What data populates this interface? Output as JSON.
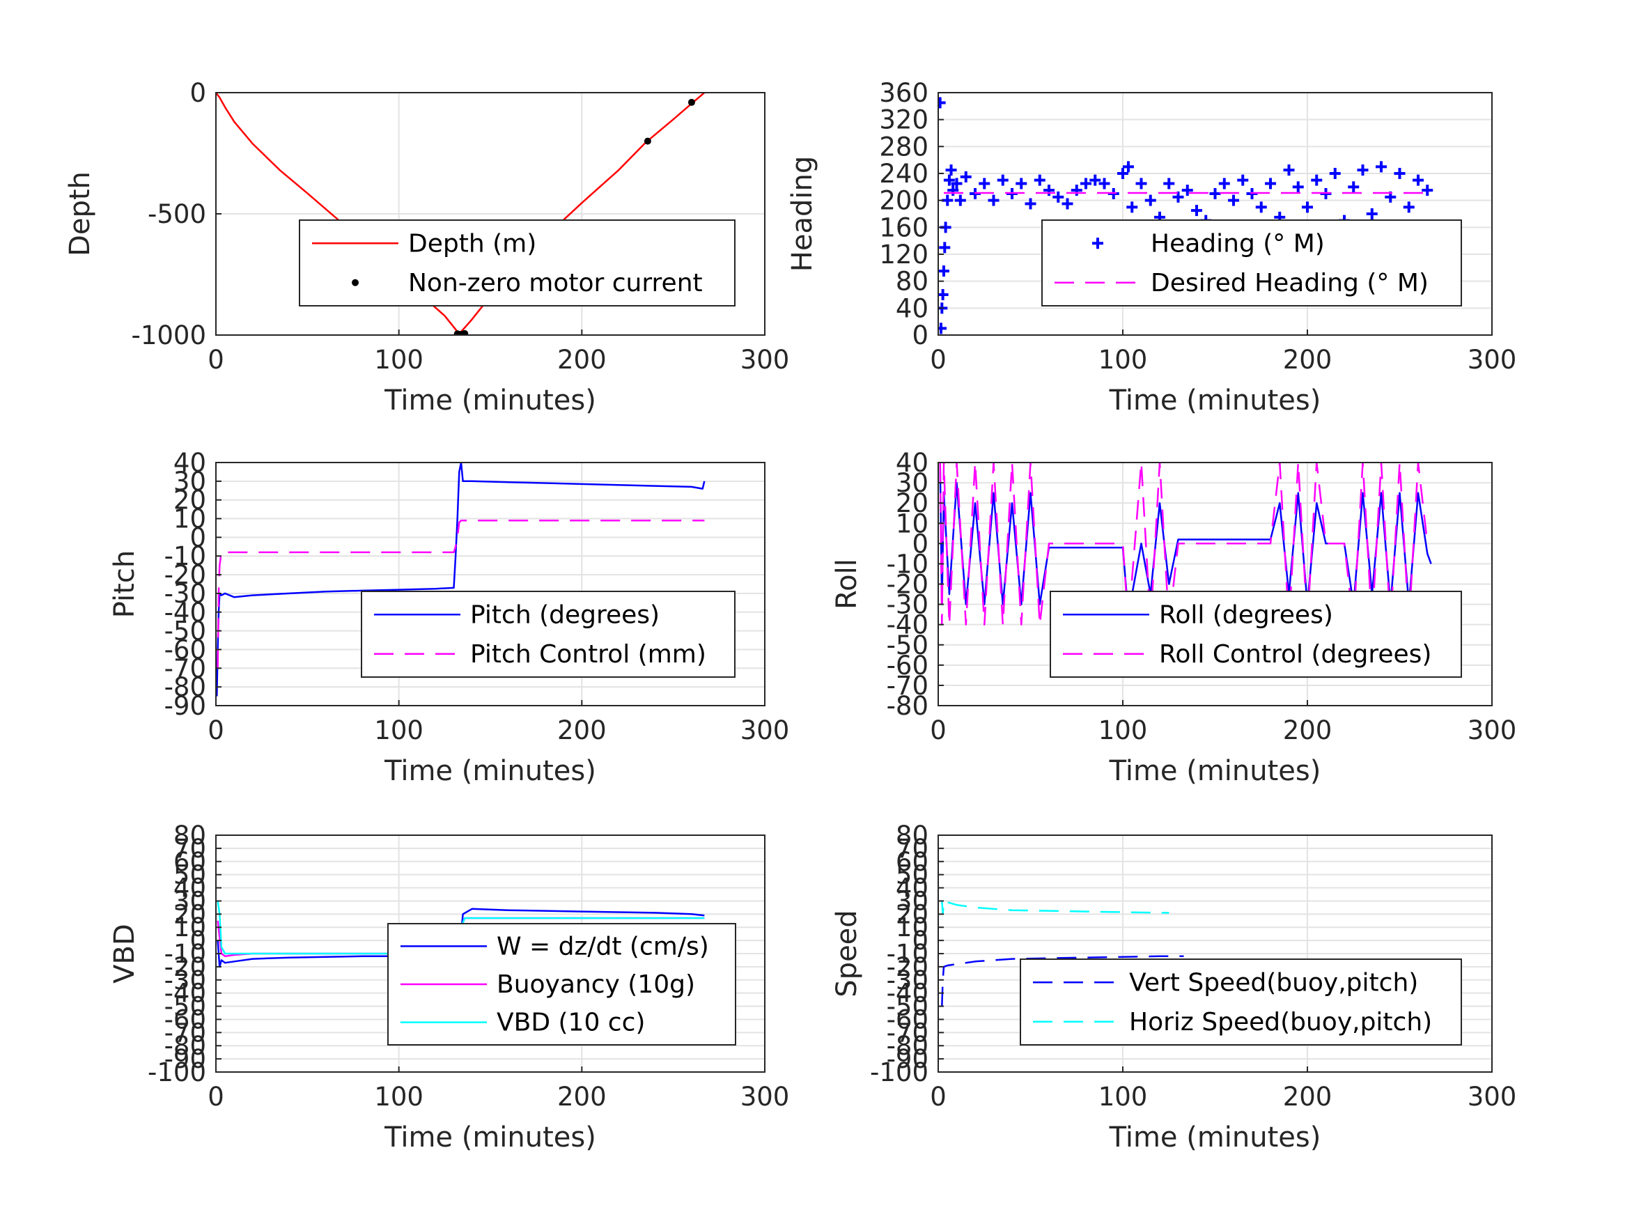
{
  "colors": {
    "red": "#ff0000",
    "black": "#000000",
    "blue": "#0000ff",
    "magenta": "#ff00ff",
    "cyan": "#00ffff",
    "grid": "#e3e3e3",
    "axis": "#262626"
  },
  "chart_data": [
    {
      "id": "depth",
      "type": "line",
      "xlabel": "Time (minutes)",
      "ylabel": "Depth",
      "xlim": [
        0,
        300
      ],
      "ylim": [
        -1000,
        0
      ],
      "xticks": [
        0,
        100,
        200,
        300
      ],
      "yticks": [
        -1000,
        -500,
        0
      ],
      "grid": true,
      "legend": "center-right",
      "series": [
        {
          "name": "Depth (m)",
          "style": "line",
          "color": "#ff0000",
          "x": [
            0,
            2,
            5,
            10,
            20,
            35,
            50,
            70,
            90,
            110,
            125,
            133,
            140,
            150,
            165,
            180,
            200,
            220,
            235,
            250,
            260,
            267
          ],
          "y": [
            0,
            -20,
            -60,
            -120,
            -210,
            -320,
            -415,
            -545,
            -680,
            -820,
            -920,
            -995,
            -935,
            -840,
            -715,
            -595,
            -455,
            -320,
            -205,
            -110,
            -45,
            0
          ]
        },
        {
          "name": "Non-zero motor current",
          "style": "dots",
          "color": "#000000",
          "x": [
            132,
            133,
            134,
            135,
            136,
            236,
            260
          ],
          "y": [
            -995,
            -997,
            -998,
            -996,
            -994,
            -200,
            -40
          ]
        }
      ]
    },
    {
      "id": "heading",
      "type": "scatter",
      "xlabel": "Time (minutes)",
      "ylabel": "Heading",
      "xlim": [
        0,
        300
      ],
      "ylim": [
        0,
        360
      ],
      "xticks": [
        0,
        100,
        200,
        300
      ],
      "yticks": [
        0,
        40,
        80,
        120,
        160,
        200,
        240,
        280,
        320,
        360
      ],
      "grid": true,
      "legend": "center-right",
      "series": [
        {
          "name": "Heading (° M)",
          "style": "plus",
          "color": "#0000ff",
          "x": [
            1,
            1.5,
            2,
            2.5,
            3,
            3.5,
            4,
            5,
            6,
            7,
            8,
            10,
            12,
            15,
            20,
            25,
            30,
            35,
            40,
            45,
            50,
            55,
            60,
            65,
            70,
            75,
            80,
            85,
            90,
            95,
            100,
            103,
            105,
            110,
            115,
            120,
            125,
            130,
            135,
            140,
            145,
            148,
            150,
            155,
            160,
            165,
            170,
            175,
            180,
            185,
            187,
            190,
            195,
            200,
            205,
            210,
            215,
            220,
            225,
            230,
            235,
            240,
            245,
            250,
            255,
            260,
            265
          ],
          "y": [
            345,
            10,
            40,
            60,
            95,
            130,
            160,
            200,
            230,
            245,
            215,
            225,
            200,
            235,
            210,
            225,
            200,
            230,
            210,
            225,
            195,
            230,
            215,
            205,
            195,
            215,
            225,
            230,
            225,
            210,
            240,
            250,
            190,
            225,
            200,
            175,
            225,
            205,
            215,
            185,
            170,
            150,
            210,
            225,
            200,
            230,
            210,
            190,
            225,
            175,
            160,
            245,
            220,
            190,
            230,
            210,
            240,
            170,
            220,
            245,
            180,
            250,
            205,
            240,
            190,
            230,
            215
          ]
        },
        {
          "name": "Desired Heading (° M)",
          "style": "dash",
          "color": "#ff00ff",
          "x": [
            3,
            268
          ],
          "y": [
            211,
            211
          ]
        }
      ]
    },
    {
      "id": "pitch",
      "type": "line",
      "xlabel": "Time (minutes)",
      "ylabel": "Pitch",
      "xlim": [
        0,
        300
      ],
      "ylim": [
        -90,
        40
      ],
      "xticks": [
        0,
        100,
        200,
        300
      ],
      "yticks": [
        -90,
        -80,
        -70,
        -60,
        -50,
        -40,
        -30,
        -20,
        -10,
        0,
        10,
        20,
        30,
        40
      ],
      "grid": true,
      "legend": "center-right",
      "series": [
        {
          "name": "Pitch (degrees)",
          "style": "line",
          "color": "#0000ff",
          "x": [
            0.5,
            1,
            1.5,
            2,
            3,
            5,
            10,
            20,
            40,
            60,
            80,
            100,
            120,
            130,
            131,
            132,
            133,
            134,
            135,
            140,
            160,
            180,
            200,
            220,
            240,
            260,
            266,
            267
          ],
          "y": [
            -85,
            -60,
            -40,
            -30,
            -31,
            -30,
            -32,
            -31,
            -30,
            -29,
            -28.5,
            -28,
            -27.5,
            -27,
            -10,
            10,
            35,
            40,
            30,
            30,
            29.5,
            29,
            28.5,
            28,
            27.5,
            27,
            26,
            30
          ]
        },
        {
          "name": "Pitch Control (mm)",
          "style": "dash",
          "color": "#ff00ff",
          "x": [
            1,
            1.5,
            2,
            3,
            10,
            50,
            100,
            130,
            131,
            132,
            133,
            134,
            135,
            140,
            200,
            267
          ],
          "y": [
            -70,
            -30,
            -15,
            -8,
            -8,
            -8,
            -8,
            -8,
            -5,
            0,
            8,
            9,
            9,
            9,
            9,
            9
          ]
        }
      ]
    },
    {
      "id": "roll",
      "type": "line",
      "xlabel": "Time (minutes)",
      "ylabel": "Roll",
      "xlim": [
        0,
        300
      ],
      "ylim": [
        -80,
        40
      ],
      "xticks": [
        0,
        100,
        200,
        300
      ],
      "yticks": [
        -80,
        -70,
        -60,
        -50,
        -40,
        -30,
        -20,
        -10,
        0,
        10,
        20,
        30,
        40
      ],
      "grid": true,
      "legend": "center-right",
      "series": [
        {
          "name": "Roll (degrees)",
          "style": "line",
          "color": "#0000ff",
          "x": [
            1,
            2,
            3,
            6,
            10,
            15,
            20,
            25,
            30,
            35,
            40,
            45,
            50,
            55,
            60,
            80,
            100,
            103,
            110,
            115,
            120,
            125,
            130,
            140,
            160,
            180,
            185,
            190,
            195,
            200,
            205,
            210,
            220,
            225,
            230,
            235,
            240,
            245,
            250,
            255,
            260,
            265,
            267
          ],
          "y": [
            40,
            -30,
            25,
            -25,
            30,
            -30,
            20,
            -30,
            25,
            -30,
            20,
            -30,
            25,
            -30,
            -2,
            -2,
            -2,
            -35,
            0,
            -25,
            20,
            -20,
            2,
            2,
            2,
            2,
            20,
            -25,
            25,
            -30,
            20,
            0,
            0,
            -30,
            25,
            -25,
            25,
            -30,
            25,
            -30,
            25,
            -5,
            -10
          ]
        },
        {
          "name": "Roll Control (degrees)",
          "style": "dash",
          "color": "#ff00ff",
          "x": [
            1,
            2,
            3,
            6,
            10,
            15,
            20,
            25,
            30,
            35,
            40,
            45,
            50,
            55,
            60,
            100,
            103,
            110,
            115,
            120,
            125,
            130,
            180,
            185,
            190,
            195,
            200,
            205,
            210,
            220,
            225,
            230,
            235,
            240,
            245,
            250,
            255,
            260,
            265
          ],
          "y": [
            40,
            -40,
            40,
            -40,
            40,
            -40,
            40,
            -40,
            40,
            -40,
            40,
            -40,
            40,
            -40,
            0,
            0,
            -40,
            40,
            -40,
            40,
            -40,
            0,
            0,
            40,
            -40,
            40,
            -40,
            40,
            0,
            0,
            -40,
            40,
            -40,
            40,
            -40,
            40,
            -40,
            40,
            0
          ]
        }
      ]
    },
    {
      "id": "vbd",
      "type": "line",
      "xlabel": "Time (minutes)",
      "ylabel": "VBD",
      "xlim": [
        0,
        300
      ],
      "ylim": [
        -100,
        80
      ],
      "xticks": [
        0,
        100,
        200,
        300
      ],
      "yticks": [
        -100,
        -90,
        -80,
        -70,
        -60,
        -50,
        -40,
        -30,
        -20,
        -10,
        0,
        10,
        20,
        30,
        40,
        50,
        60,
        70,
        80
      ],
      "grid": true,
      "legend": "center-right",
      "series": [
        {
          "name": "W = dz/dt (cm/s)",
          "style": "line",
          "color": "#0000ff",
          "x": [
            1,
            2,
            3,
            5,
            10,
            20,
            40,
            60,
            80,
            100,
            120,
            132,
            133,
            134,
            135,
            140,
            160,
            180,
            200,
            220,
            240,
            260,
            267
          ],
          "y": [
            0,
            -20,
            -15,
            -17,
            -16,
            -14,
            -13,
            -12.5,
            -12,
            -12,
            -12,
            -12,
            -5,
            5,
            20,
            24,
            23,
            22.5,
            22,
            21.5,
            21,
            20,
            19
          ]
        },
        {
          "name": "Buoyancy (10g)",
          "style": "line",
          "color": "#ff00ff",
          "x": [
            1,
            3,
            5,
            10,
            20,
            50,
            100,
            132,
            133,
            134,
            136,
            140,
            200,
            267
          ],
          "y": [
            15,
            -10,
            -12,
            -11,
            -10,
            -10,
            -10,
            -10,
            0,
            10,
            17,
            17,
            17,
            17
          ]
        },
        {
          "name": "VBD (10 cc)",
          "style": "line",
          "color": "#00ffff",
          "x": [
            1,
            2,
            3,
            5,
            10,
            50,
            100,
            132,
            133,
            134,
            136,
            140,
            200,
            267
          ],
          "y": [
            30,
            20,
            -5,
            -10,
            -10,
            -10,
            -10,
            -10,
            0,
            10,
            17,
            17,
            17,
            17
          ]
        }
      ]
    },
    {
      "id": "speed",
      "type": "line",
      "xlabel": "Time (minutes)",
      "ylabel": "Speed",
      "xlim": [
        0,
        300
      ],
      "ylim": [
        -100,
        80
      ],
      "xticks": [
        0,
        100,
        200,
        300
      ],
      "yticks": [
        -100,
        -90,
        -80,
        -70,
        -60,
        -50,
        -40,
        -30,
        -20,
        -10,
        0,
        10,
        20,
        30,
        40,
        50,
        60,
        70,
        80
      ],
      "grid": true,
      "legend": "center-right",
      "series": [
        {
          "name": "Vert Speed(buoy,pitch)",
          "style": "dash",
          "color": "#0000ff",
          "x": [
            2,
            2.5,
            3,
            5,
            10,
            20,
            40,
            60,
            80,
            100,
            120,
            133
          ],
          "y": [
            -50,
            -30,
            -20,
            -19,
            -18,
            -16,
            -14,
            -13.5,
            -13,
            -12.5,
            -12,
            -12
          ]
        },
        {
          "name": "Horiz Speed(buoy,pitch)",
          "style": "dash",
          "color": "#00ffff",
          "x": [
            2,
            2.5,
            3,
            5,
            10,
            20,
            40,
            60,
            80,
            100,
            120,
            125
          ],
          "y": [
            30,
            20,
            30,
            29,
            27,
            25,
            23,
            22.5,
            22,
            21.5,
            21,
            21
          ]
        }
      ]
    }
  ]
}
